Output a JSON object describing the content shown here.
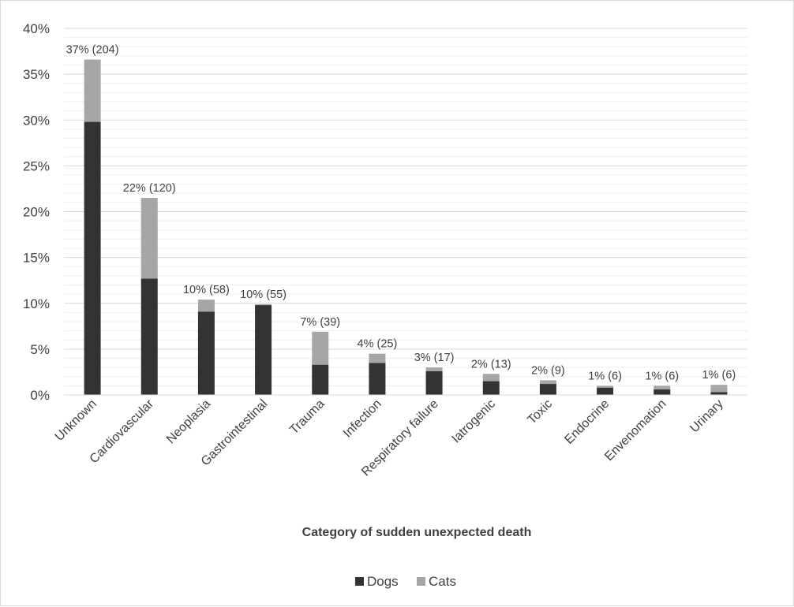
{
  "chart_data": {
    "type": "bar",
    "stacked": true,
    "title": "",
    "xlabel": "Category of sudden unexpected death",
    "ylabel": "",
    "ylim": [
      0,
      40
    ],
    "yticks": [
      "0%",
      "5%",
      "10%",
      "15%",
      "20%",
      "25%",
      "30%",
      "35%",
      "40%"
    ],
    "grid": true,
    "legend_position": "bottom",
    "categories": [
      "Unknown",
      "Cardiovascular",
      "Neoplasia",
      "Gastrointestinal",
      "Trauma",
      "Infection",
      "Respiratory failure",
      "Iatrogenic",
      "Toxic",
      "Endocrine",
      "Envenomation",
      "Urinary"
    ],
    "series": [
      {
        "name": "Dogs",
        "color": "#333333",
        "values": [
          29.8,
          12.7,
          9.1,
          9.8,
          3.3,
          3.5,
          2.6,
          1.5,
          1.2,
          0.8,
          0.6,
          0.3
        ]
      },
      {
        "name": "Cats",
        "color": "#a6a6a6",
        "values": [
          6.8,
          8.8,
          1.3,
          0.1,
          3.6,
          1.0,
          0.4,
          0.8,
          0.4,
          0.2,
          0.4,
          0.8
        ]
      }
    ],
    "data_labels": [
      "37% (204)",
      "22% (120)",
      "10% (58)",
      "10% (55)",
      "7% (39)",
      "4% (25)",
      "3% (17)",
      "2% (13)",
      "2% (9)",
      "1% (6)",
      "1% (6)",
      "1% (6)"
    ]
  }
}
